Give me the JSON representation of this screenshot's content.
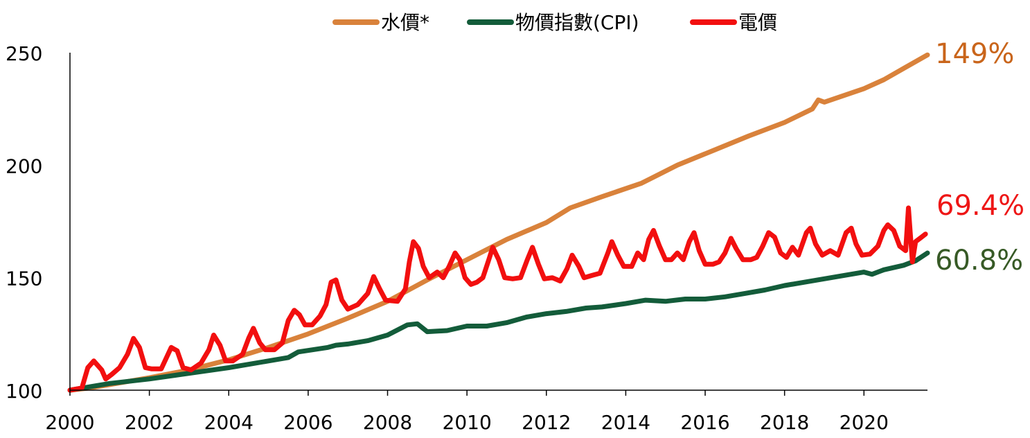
{
  "chart_data": {
    "type": "line",
    "xlim": [
      2000,
      2021.6
    ],
    "ylim": [
      100,
      250
    ],
    "x_ticks": [
      "2000",
      "2002",
      "2004",
      "2006",
      "2008",
      "2010",
      "2012",
      "2014",
      "2016",
      "2018",
      "2020"
    ],
    "y_ticks": [
      "100",
      "150",
      "200",
      "250"
    ],
    "legend_position": "top",
    "grid": false,
    "series": [
      {
        "name": "水價*",
        "color": "#D9823B",
        "end_label": "149%",
        "end_label_color": "#C9651B",
        "points": [
          [
            2000,
            100
          ],
          [
            2000.5,
            101
          ],
          [
            2001,
            102.5
          ],
          [
            2002,
            105.5
          ],
          [
            2003,
            109
          ],
          [
            2004,
            113.5
          ],
          [
            2005,
            119
          ],
          [
            2006,
            125
          ],
          [
            2007,
            132
          ],
          [
            2008,
            139.5
          ],
          [
            2009,
            149
          ],
          [
            2010,
            158
          ],
          [
            2011,
            167
          ],
          [
            2012,
            174.5
          ],
          [
            2012.6,
            181
          ],
          [
            2013.4,
            186
          ],
          [
            2014.4,
            192
          ],
          [
            2015.3,
            200
          ],
          [
            2016.2,
            206.5
          ],
          [
            2017.1,
            213
          ],
          [
            2018,
            219
          ],
          [
            2018.7,
            225
          ],
          [
            2018.85,
            229
          ],
          [
            2019,
            228
          ],
          [
            2019.5,
            231
          ],
          [
            2020,
            234
          ],
          [
            2020.5,
            238
          ],
          [
            2021,
            243
          ],
          [
            2021.6,
            249
          ]
        ]
      },
      {
        "name": "物價指數(CPI)",
        "color": "#135C3A",
        "end_label": "60.8%",
        "end_label_color": "#375A26",
        "points": [
          [
            2000,
            100
          ],
          [
            2001,
            103
          ],
          [
            2002,
            105
          ],
          [
            2003,
            107.5
          ],
          [
            2004,
            110
          ],
          [
            2005,
            113
          ],
          [
            2005.5,
            114.5
          ],
          [
            2005.75,
            117
          ],
          [
            2006.5,
            119
          ],
          [
            2006.7,
            120
          ],
          [
            2007,
            120.5
          ],
          [
            2007.5,
            122
          ],
          [
            2008,
            124.5
          ],
          [
            2008.5,
            129
          ],
          [
            2008.75,
            129.5
          ],
          [
            2009,
            126
          ],
          [
            2009.5,
            126.5
          ],
          [
            2010,
            128.5
          ],
          [
            2010.5,
            128.5
          ],
          [
            2011,
            130
          ],
          [
            2011.5,
            132.5
          ],
          [
            2012,
            134
          ],
          [
            2012.5,
            135
          ],
          [
            2013,
            136.5
          ],
          [
            2013.4,
            137
          ],
          [
            2014,
            138.5
          ],
          [
            2014.5,
            140
          ],
          [
            2015,
            139.5
          ],
          [
            2015.5,
            140.5
          ],
          [
            2016,
            140.5
          ],
          [
            2016.5,
            141.5
          ],
          [
            2017,
            143
          ],
          [
            2017.5,
            144.5
          ],
          [
            2018,
            146.5
          ],
          [
            2018.5,
            148
          ],
          [
            2019,
            149.5
          ],
          [
            2019.5,
            151
          ],
          [
            2020,
            152.5
          ],
          [
            2020.2,
            151.5
          ],
          [
            2020.5,
            153.5
          ],
          [
            2021,
            155.5
          ],
          [
            2021.3,
            157.5
          ],
          [
            2021.6,
            161
          ]
        ]
      },
      {
        "name": "電價",
        "color": "#F20F0F",
        "end_label": "69.4%",
        "end_label_color": "#EE1616",
        "points": [
          [
            2000,
            100
          ],
          [
            2000.3,
            101
          ],
          [
            2000.45,
            110
          ],
          [
            2000.6,
            113
          ],
          [
            2000.8,
            109
          ],
          [
            2000.9,
            105
          ],
          [
            2001.05,
            107
          ],
          [
            2001.25,
            110
          ],
          [
            2001.45,
            116
          ],
          [
            2001.6,
            123
          ],
          [
            2001.75,
            119
          ],
          [
            2001.9,
            110
          ],
          [
            2002.05,
            109.5
          ],
          [
            2002.3,
            109.5
          ],
          [
            2002.55,
            119
          ],
          [
            2002.7,
            117.5
          ],
          [
            2002.85,
            110
          ],
          [
            2003.05,
            109
          ],
          [
            2003.3,
            112
          ],
          [
            2003.5,
            118
          ],
          [
            2003.62,
            124.5
          ],
          [
            2003.78,
            120
          ],
          [
            2003.92,
            113
          ],
          [
            2004.1,
            113
          ],
          [
            2004.35,
            116
          ],
          [
            2004.5,
            123
          ],
          [
            2004.62,
            127.5
          ],
          [
            2004.78,
            121
          ],
          [
            2004.92,
            118
          ],
          [
            2005.15,
            118
          ],
          [
            2005.35,
            121
          ],
          [
            2005.5,
            131
          ],
          [
            2005.65,
            135.5
          ],
          [
            2005.78,
            133.5
          ],
          [
            2005.92,
            129
          ],
          [
            2006.1,
            129
          ],
          [
            2006.3,
            133
          ],
          [
            2006.45,
            138
          ],
          [
            2006.58,
            148
          ],
          [
            2006.7,
            149
          ],
          [
            2006.85,
            140
          ],
          [
            2007,
            136
          ],
          [
            2007.25,
            138
          ],
          [
            2007.5,
            143
          ],
          [
            2007.65,
            150.5
          ],
          [
            2007.8,
            145
          ],
          [
            2007.95,
            140
          ],
          [
            2008.25,
            139.5
          ],
          [
            2008.45,
            145
          ],
          [
            2008.55,
            157
          ],
          [
            2008.65,
            166
          ],
          [
            2008.78,
            163
          ],
          [
            2008.9,
            155
          ],
          [
            2009.05,
            150
          ],
          [
            2009.25,
            152.5
          ],
          [
            2009.4,
            150
          ],
          [
            2009.55,
            155
          ],
          [
            2009.7,
            161
          ],
          [
            2009.82,
            158
          ],
          [
            2009.95,
            150
          ],
          [
            2010.1,
            147
          ],
          [
            2010.25,
            148
          ],
          [
            2010.4,
            150
          ],
          [
            2010.55,
            158
          ],
          [
            2010.65,
            163.5
          ],
          [
            2010.8,
            158
          ],
          [
            2010.95,
            150
          ],
          [
            2011.15,
            149.5
          ],
          [
            2011.35,
            150
          ],
          [
            2011.52,
            158
          ],
          [
            2011.65,
            163.5
          ],
          [
            2011.8,
            156
          ],
          [
            2011.95,
            149.5
          ],
          [
            2012.15,
            150
          ],
          [
            2012.35,
            148.5
          ],
          [
            2012.52,
            154
          ],
          [
            2012.65,
            160
          ],
          [
            2012.82,
            155
          ],
          [
            2012.95,
            150
          ],
          [
            2013.15,
            151
          ],
          [
            2013.35,
            152
          ],
          [
            2013.55,
            161
          ],
          [
            2013.65,
            166
          ],
          [
            2013.8,
            160
          ],
          [
            2013.95,
            155
          ],
          [
            2014.15,
            155
          ],
          [
            2014.3,
            161
          ],
          [
            2014.45,
            158
          ],
          [
            2014.58,
            167
          ],
          [
            2014.7,
            171
          ],
          [
            2014.85,
            164
          ],
          [
            2015,
            158
          ],
          [
            2015.15,
            158
          ],
          [
            2015.3,
            161
          ],
          [
            2015.45,
            158
          ],
          [
            2015.6,
            166
          ],
          [
            2015.72,
            170
          ],
          [
            2015.85,
            162
          ],
          [
            2016,
            156
          ],
          [
            2016.2,
            156
          ],
          [
            2016.35,
            157
          ],
          [
            2016.5,
            161
          ],
          [
            2016.65,
            167.5
          ],
          [
            2016.78,
            163
          ],
          [
            2016.95,
            158
          ],
          [
            2017.15,
            158
          ],
          [
            2017.3,
            159
          ],
          [
            2017.45,
            164
          ],
          [
            2017.6,
            170
          ],
          [
            2017.75,
            168
          ],
          [
            2017.9,
            161
          ],
          [
            2018.05,
            159
          ],
          [
            2018.2,
            163.5
          ],
          [
            2018.35,
            160
          ],
          [
            2018.55,
            170
          ],
          [
            2018.65,
            172
          ],
          [
            2018.78,
            165
          ],
          [
            2018.95,
            160
          ],
          [
            2019.15,
            162
          ],
          [
            2019.35,
            160
          ],
          [
            2019.55,
            170
          ],
          [
            2019.68,
            172
          ],
          [
            2019.8,
            165
          ],
          [
            2019.95,
            160
          ],
          [
            2020.15,
            160.5
          ],
          [
            2020.35,
            164
          ],
          [
            2020.5,
            171
          ],
          [
            2020.6,
            173.5
          ],
          [
            2020.75,
            171
          ],
          [
            2020.9,
            164
          ],
          [
            2021.05,
            162
          ],
          [
            2021.12,
            181
          ],
          [
            2021.22,
            157
          ],
          [
            2021.3,
            166
          ],
          [
            2021.45,
            168
          ],
          [
            2021.55,
            169.4
          ]
        ]
      }
    ]
  }
}
